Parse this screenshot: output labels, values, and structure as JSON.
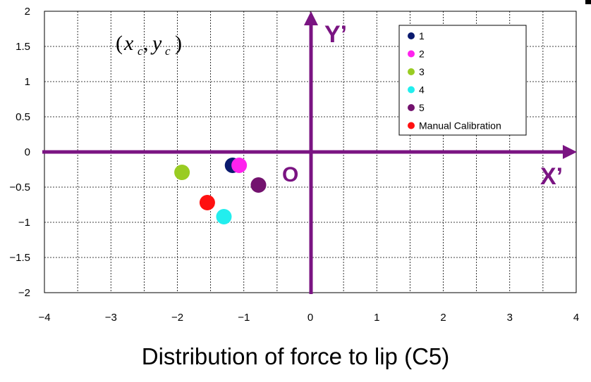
{
  "chart_data": {
    "type": "scatter",
    "xlabel": "Distribution of force to lip (C5)",
    "xlim": [
      -4,
      4
    ],
    "ylim": [
      -2,
      2
    ],
    "xticks": [
      -4,
      -3,
      -2,
      -1,
      0,
      1,
      2,
      3,
      4
    ],
    "yticks": [
      2,
      1.5,
      1,
      0.5,
      0,
      -0.5,
      -1,
      -1.5,
      -2
    ],
    "grid": true,
    "legend_position": "top-right",
    "series": [
      {
        "name": "1",
        "color": "#0a1a6e",
        "points": [
          [
            -1.17,
            -0.19
          ]
        ]
      },
      {
        "name": "2",
        "color": "#ff22ee",
        "points": [
          [
            -1.07,
            -0.19
          ]
        ]
      },
      {
        "name": "3",
        "color": "#99cc22",
        "points": [
          [
            -1.93,
            -0.29
          ]
        ]
      },
      {
        "name": "4",
        "color": "#22eeee",
        "points": [
          [
            -1.3,
            -0.92
          ]
        ]
      },
      {
        "name": "5",
        "color": "#73126e",
        "points": [
          [
            -0.78,
            -0.47
          ]
        ]
      },
      {
        "name": "Manual Calibration",
        "color": "#ff1010",
        "points": [
          [
            -1.55,
            -0.72
          ]
        ]
      }
    ],
    "annotations": {
      "x_axis_label": "X’",
      "y_axis_label": "Y’",
      "origin_label": "O",
      "formula": {
        "open": "(",
        "x": "x",
        "x_sub": "c",
        "comma": ",",
        "y": "y",
        "y_sub": "c",
        "close": ")"
      },
      "axis_color": "#7a1482"
    }
  }
}
